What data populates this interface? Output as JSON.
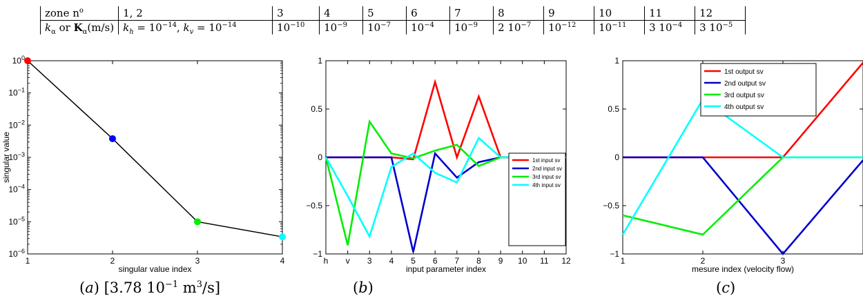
{
  "table": {
    "row1": {
      "head": "zone n°",
      "cells": [
        "1, 2",
        "3",
        "4",
        "5",
        "6",
        "7",
        "8",
        "9",
        "10",
        "11",
        "12"
      ]
    },
    "row2": {
      "head": "k_α or K_α(m/s)",
      "cells": [
        "k_h = 10^-14, k_v = 10^-14",
        "10^-10",
        "10^-9",
        "10^-7",
        "10^-4",
        "10^-9",
        "2 10^-7",
        "10^-12",
        "10^-11",
        "3 10^-4",
        "3 10^-5"
      ]
    }
  },
  "captions": {
    "a": "(a) [3.78 10^-1 m^3/s]",
    "b": "(b)",
    "c": "(c)"
  },
  "chart_data": [
    {
      "id": "a",
      "type": "line",
      "xlabel": "singular value index",
      "ylabel": "singular value",
      "x": [
        1,
        2,
        3,
        4
      ],
      "xlim": [
        1,
        4
      ],
      "xticks": [
        "1",
        "2",
        "3",
        "4"
      ],
      "ylim": [
        1e-06,
        1
      ],
      "yscale": "log",
      "yticks": [
        "10^0",
        "10^-1",
        "10^-2",
        "10^-3",
        "10^-4",
        "10^-5",
        "10^-6"
      ],
      "series": [
        {
          "values": [
            1,
            0.0038,
            1e-05,
            3.4e-06
          ],
          "color": "#000000"
        }
      ],
      "marker_colors": [
        "#ff0000",
        "#0000ff",
        "#00ee00",
        "#00ffff"
      ],
      "grid": false
    },
    {
      "id": "b",
      "type": "line",
      "xlabel": "input parameter index",
      "ylabel": "",
      "categories": [
        "h",
        "v",
        "3",
        "4",
        "5",
        "6",
        "7",
        "8",
        "9",
        "10",
        "11",
        "12"
      ],
      "ylim": [
        -1,
        1
      ],
      "yticks": [
        "1",
        "0.5",
        "0",
        "-0.5",
        "-1"
      ],
      "legend_position": "right",
      "series": [
        {
          "name": "1st input sv",
          "color": "#ff0000",
          "values": [
            0,
            0,
            0,
            0,
            -0.02,
            0.78,
            0.0,
            0.63,
            0,
            0,
            0,
            0
          ]
        },
        {
          "name": "2nd input sv",
          "color": "#0000cc",
          "values": [
            0,
            0,
            0,
            0,
            -0.98,
            0.04,
            -0.21,
            -0.05,
            0,
            0,
            0,
            0
          ]
        },
        {
          "name": "3rd input sv",
          "color": "#00ee00",
          "values": [
            0,
            -0.91,
            0.37,
            0.04,
            -0.01,
            0.07,
            0.13,
            -0.09,
            0,
            0,
            0,
            0
          ]
        },
        {
          "name": "4th input sv",
          "color": "#00ffff",
          "values": [
            0,
            -0.4,
            -0.82,
            -0.1,
            0.04,
            -0.16,
            -0.26,
            0.2,
            0,
            0,
            0,
            0
          ]
        }
      ],
      "grid": false
    },
    {
      "id": "c",
      "type": "line",
      "xlabel": "mesure index (velocity flow)",
      "ylabel": "",
      "x": [
        1,
        2,
        3,
        4
      ],
      "xlim": [
        1,
        4
      ],
      "xticks": [
        "1",
        "2",
        "3"
      ],
      "ylim": [
        -1,
        1
      ],
      "yticks": [
        "1",
        "0.5",
        "0",
        "-0.5",
        "-1"
      ],
      "legend_position": "top",
      "series": [
        {
          "name": "1st output sv",
          "color": "#ff0000",
          "values": [
            0,
            0,
            0,
            0.98
          ]
        },
        {
          "name": "2nd output sv",
          "color": "#0000cc",
          "values": [
            0,
            0,
            -1,
            -0.03
          ]
        },
        {
          "name": "3rd output sv",
          "color": "#00ee00",
          "values": [
            -0.6,
            -0.8,
            0,
            0
          ]
        },
        {
          "name": "4th output sv",
          "color": "#00ffff",
          "values": [
            -0.8,
            0.6,
            0,
            0
          ]
        }
      ],
      "grid": false
    }
  ]
}
